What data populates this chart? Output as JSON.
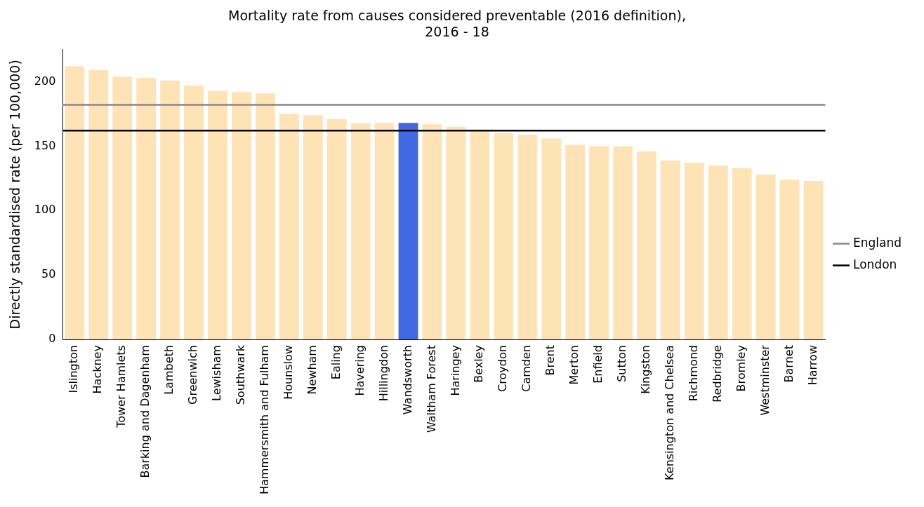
{
  "chart_data": {
    "type": "bar",
    "title": "Mortality rate from causes considered preventable (2016 definition),\n2016 - 18",
    "ylabel": "Directly standardised rate (per 100,000)",
    "categories": [
      "Islington",
      "Hackney",
      "Tower Hamlets",
      "Barking and Dagenham",
      "Lambeth",
      "Greenwich",
      "Lewisham",
      "Southwark",
      "Hammersmith and Fulham",
      "Hounslow",
      "Newham",
      "Ealing",
      "Havering",
      "Hillingdon",
      "Wandsworth",
      "Waltham Forest",
      "Haringey",
      "Bexley",
      "Croydon",
      "Camden",
      "Brent",
      "Merton",
      "Enfield",
      "Sutton",
      "Kingston",
      "Kensington and Chelsea",
      "Richmond",
      "Redbridge",
      "Bromley",
      "Westminster",
      "Barnet",
      "Harrow"
    ],
    "values": [
      212,
      209,
      204,
      203,
      201,
      197,
      193,
      192,
      191,
      175,
      174,
      171,
      168,
      168,
      168,
      167,
      165,
      163,
      160,
      159,
      156,
      151,
      150,
      150,
      146,
      139,
      137,
      135,
      133,
      128,
      124,
      123
    ],
    "colors": [
      "#fee3b6",
      "#fee3b6",
      "#fee3b6",
      "#fee3b6",
      "#fee3b6",
      "#fee3b6",
      "#fee3b6",
      "#fee3b6",
      "#fee3b6",
      "#fee3b6",
      "#fee3b6",
      "#fee3b6",
      "#fee3b6",
      "#fee3b6",
      "#4169e1",
      "#fee3b6",
      "#fee3b6",
      "#fee3b6",
      "#fee3b6",
      "#fee3b6",
      "#fee3b6",
      "#fee3b6",
      "#fee3b6",
      "#fee3b6",
      "#fee3b6",
      "#fee3b6",
      "#fee3b6",
      "#fee3b6",
      "#fee3b6",
      "#fee3b6",
      "#fee3b6",
      "#fee3b6"
    ],
    "ylim": [
      0,
      225
    ],
    "yticks": [
      0,
      50,
      100,
      150,
      200
    ],
    "grid": false,
    "legend": "right",
    "ref_lines": [
      {
        "axis": "y",
        "value": 182,
        "label": "England",
        "color": "#888888"
      },
      {
        "axis": "y",
        "value": 162,
        "label": "London",
        "color": "#000000"
      }
    ]
  }
}
